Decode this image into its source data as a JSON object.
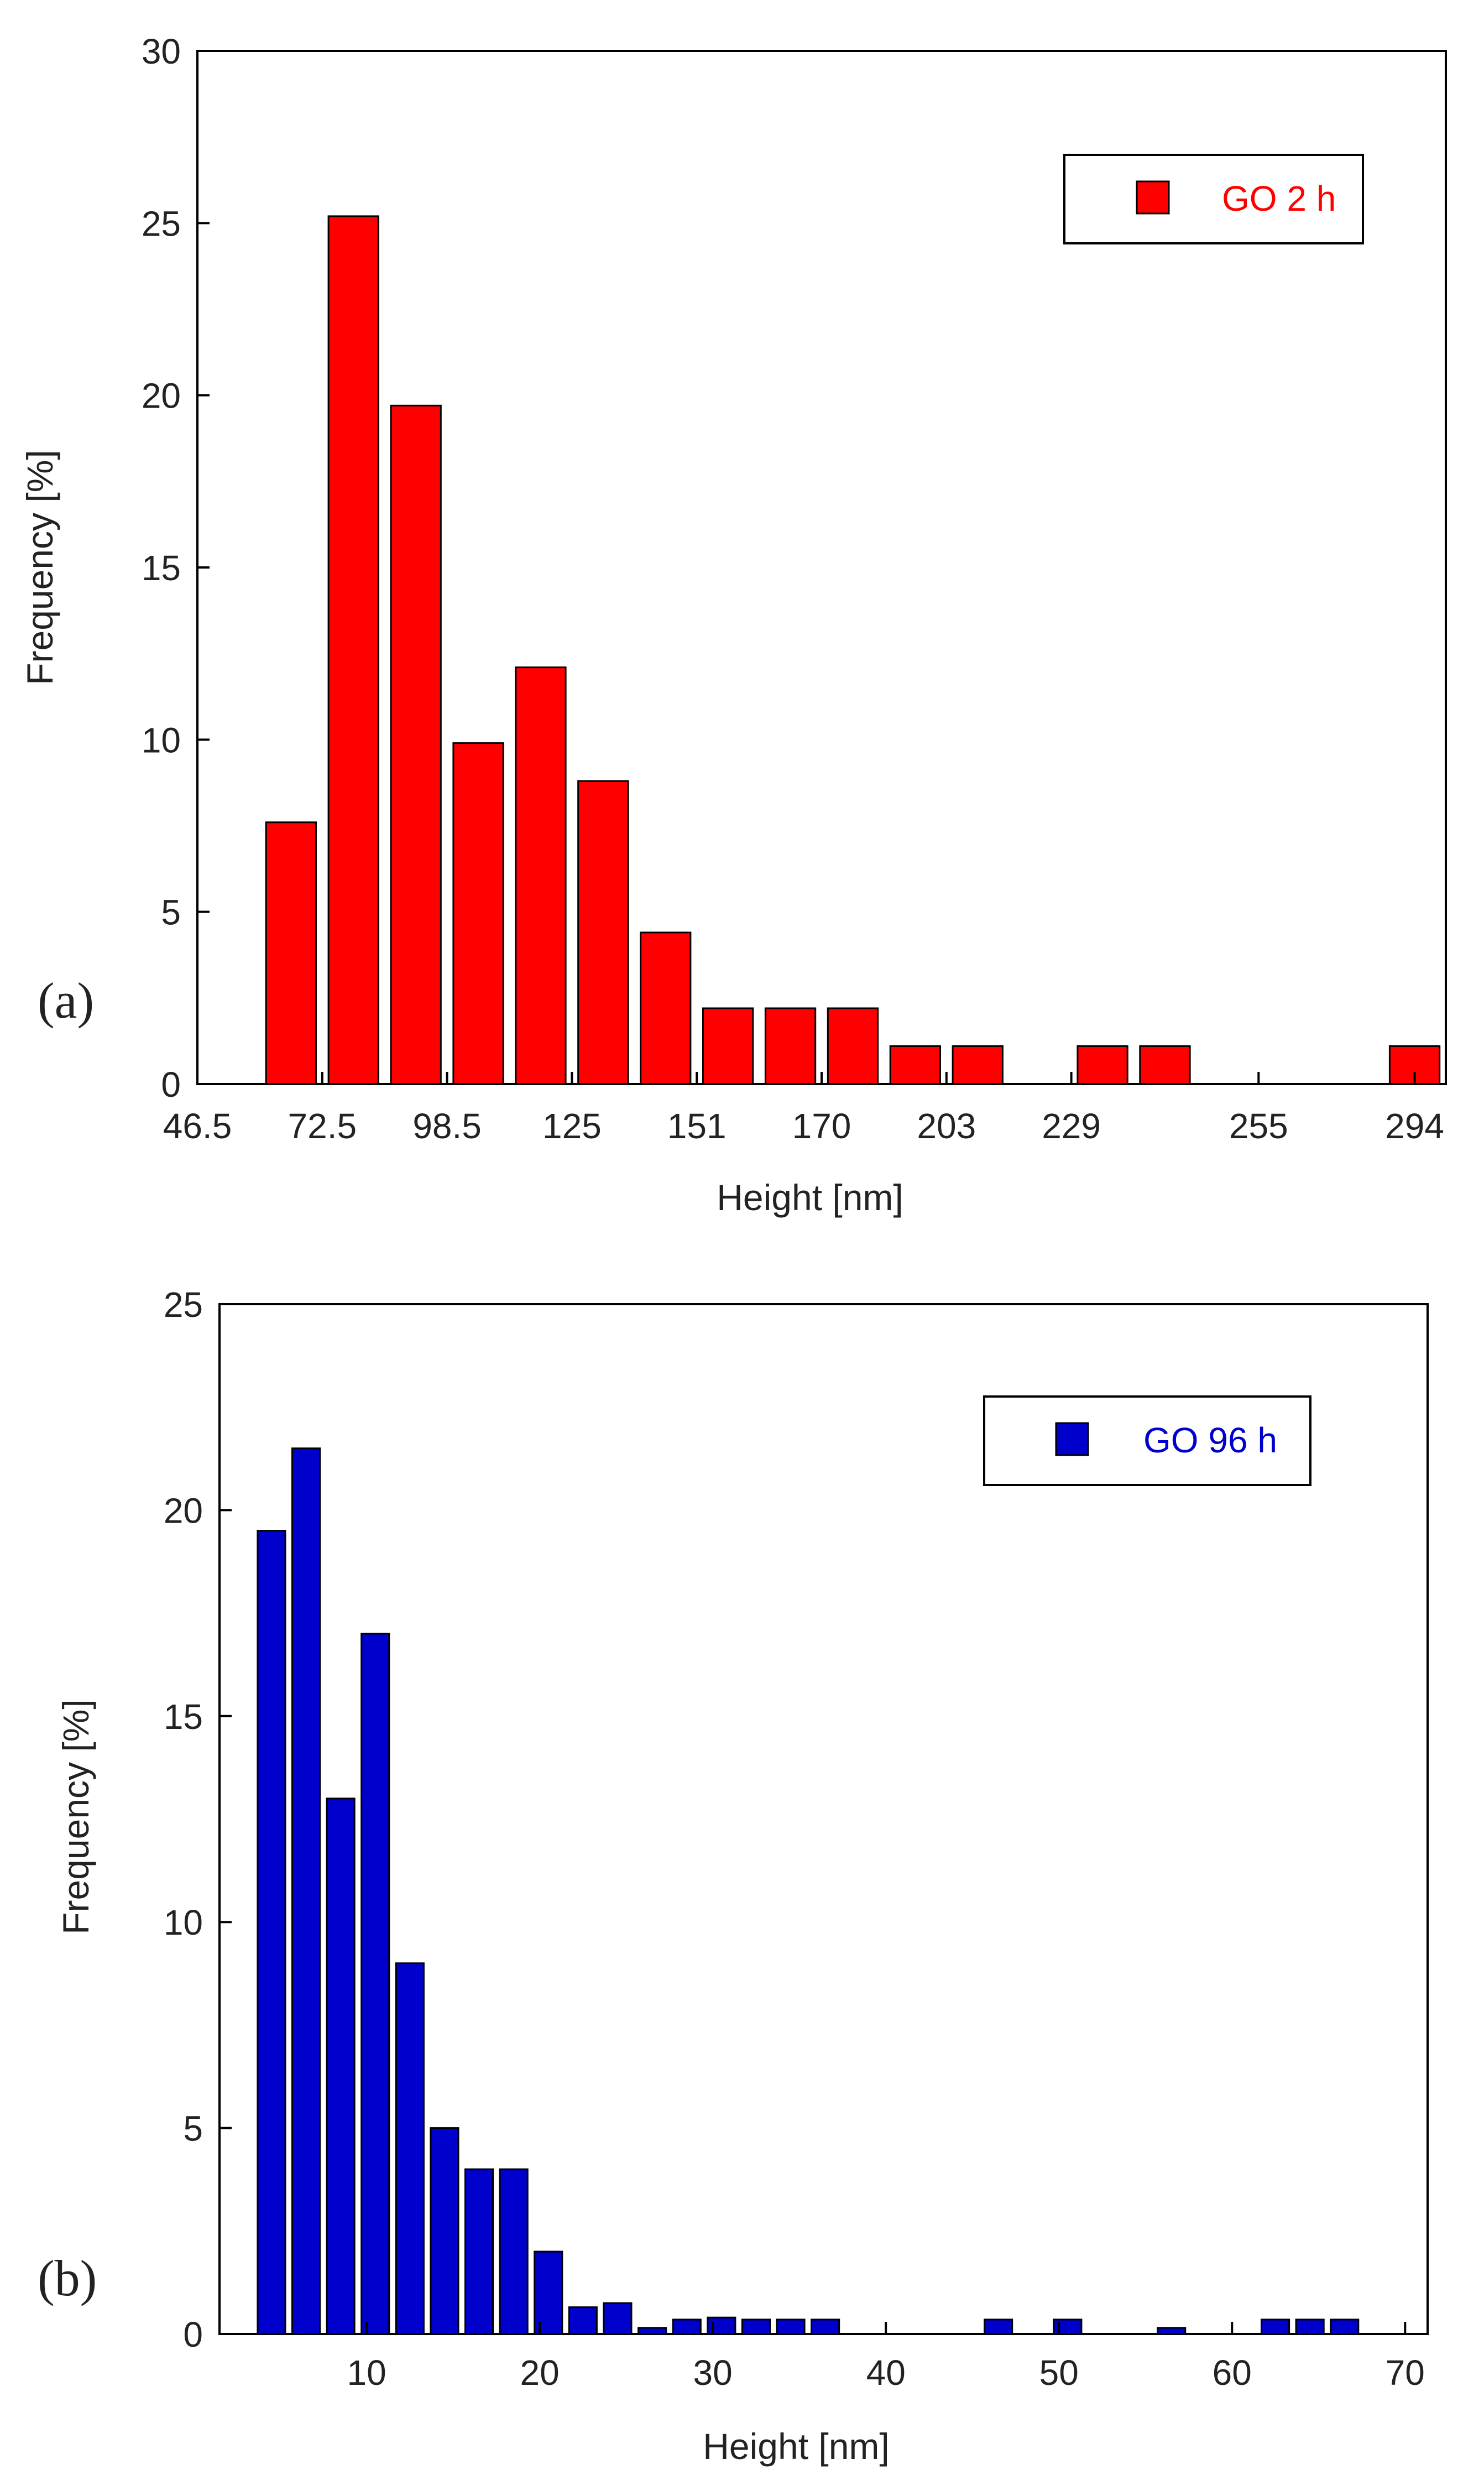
{
  "chart_data": [
    {
      "type": "bar",
      "panel_label": "(a)",
      "xlabel": "Height [nm]",
      "ylabel": "Frequency [%]",
      "ylim": [
        0,
        30
      ],
      "yticks": [
        "0",
        "5",
        "10",
        "15",
        "20",
        "25",
        "30"
      ],
      "xlim": [
        0,
        20
      ],
      "xticks": [
        {
          "label": "46.5",
          "pos": 0
        },
        {
          "label": "72.5",
          "pos": 2
        },
        {
          "label": "98.5",
          "pos": 4
        },
        {
          "label": "125",
          "pos": 6
        },
        {
          "label": "151",
          "pos": 8
        },
        {
          "label": "170",
          "pos": 10
        },
        {
          "label": "203",
          "pos": 12
        },
        {
          "label": "229",
          "pos": 14
        },
        {
          "label": "255",
          "pos": 17
        },
        {
          "label": "294",
          "pos": 19.5
        }
      ],
      "bar_slot_width": 1,
      "color": "#ff0000",
      "legend": {
        "label": "GO 2 h",
        "color": "#ff0000",
        "position": "top-right"
      },
      "series": [
        {
          "name": "GO 2 h",
          "x": [
            1.5,
            2.5,
            3.5,
            4.5,
            5.5,
            6.5,
            7.5,
            8.5,
            9.5,
            10.5,
            11.5,
            12.5,
            14.5,
            15.5,
            19.5
          ],
          "values": [
            7.6,
            25.2,
            19.7,
            9.9,
            12.1,
            8.8,
            4.4,
            2.2,
            2.2,
            2.2,
            1.1,
            1.1,
            1.1,
            1.1,
            1.1
          ]
        }
      ]
    },
    {
      "type": "bar",
      "panel_label": "(b)",
      "xlabel": "Height [nm]",
      "ylabel": "Frequency [%]",
      "ylim": [
        0,
        25
      ],
      "yticks": [
        "0",
        "5",
        "10",
        "15",
        "20",
        "25"
      ],
      "xlim": [
        1.5,
        71.3
      ],
      "xticks": [
        {
          "label": "10",
          "pos": 10
        },
        {
          "label": "20",
          "pos": 20
        },
        {
          "label": "30",
          "pos": 30
        },
        {
          "label": "40",
          "pos": 40
        },
        {
          "label": "50",
          "pos": 50
        },
        {
          "label": "60",
          "pos": 60
        },
        {
          "label": "70",
          "pos": 70
        }
      ],
      "bar_slot_width": 2,
      "color": "#0000cd",
      "legend": {
        "label": "GO 96 h",
        "color": "#0000cd",
        "position": "top-right"
      },
      "series": [
        {
          "name": "GO 96 h",
          "x": [
            4.5,
            6.5,
            8.5,
            10.5,
            12.5,
            14.5,
            16.5,
            18.5,
            20.5,
            22.5,
            24.5,
            26.5,
            28.5,
            30.5,
            32.5,
            34.5,
            36.5,
            46.5,
            50.5,
            56.5,
            62.5,
            64.5,
            66.5
          ],
          "values": [
            19.5,
            21.5,
            13.0,
            17.0,
            9.0,
            5.0,
            4.0,
            4.0,
            2.0,
            0.65,
            0.75,
            0.15,
            0.35,
            0.4,
            0.35,
            0.35,
            0.35,
            0.35,
            0.35,
            0.15,
            0.35,
            0.35,
            0.35
          ]
        }
      ]
    }
  ]
}
